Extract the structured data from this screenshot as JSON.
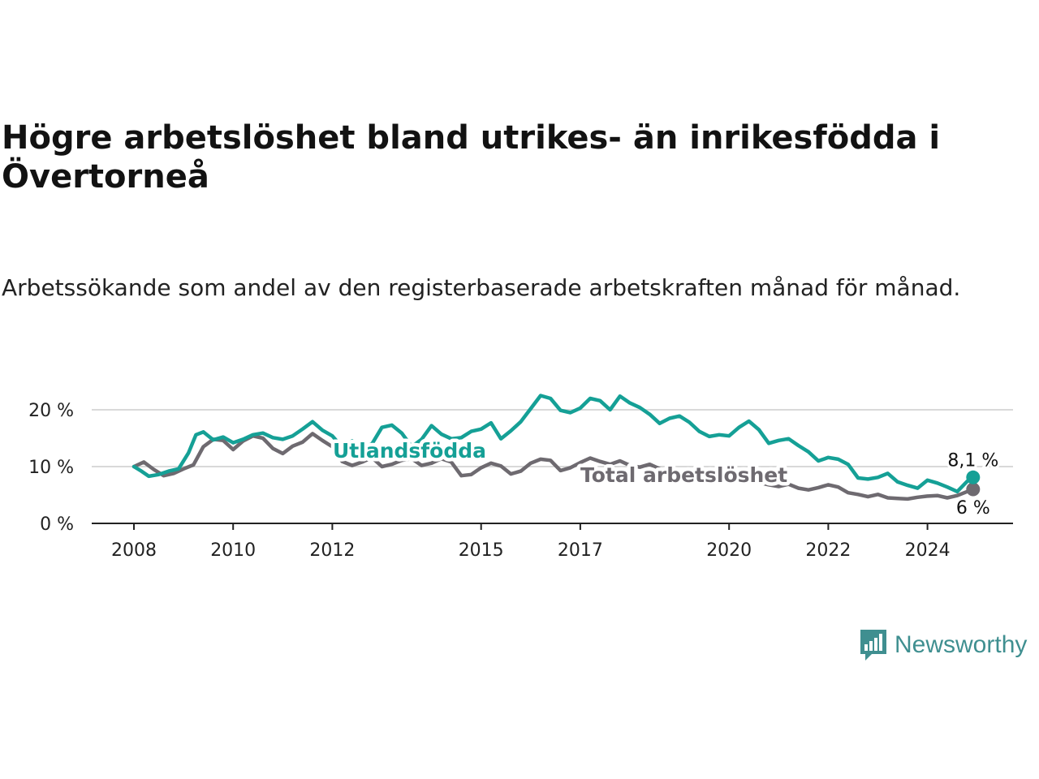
{
  "title": "Högre arbetslöshet bland utrikes- än inrikesfödda i Övertorneå",
  "subtitle": "Arbetssökande som andel av den registerbaserade arbetskraften månad för månad.",
  "brand": {
    "name": "Newsworthy",
    "color": "#3f8f90",
    "icon": "bar-chart-speech-bubble-icon"
  },
  "chart_data": {
    "type": "line",
    "x_unit": "year (decimal)",
    "xlim": [
      2008,
      2025
    ],
    "ylim": [
      0,
      22
    ],
    "yticks": [
      0,
      10,
      20
    ],
    "ytick_labels": [
      "0 %",
      "10 %",
      "20 %"
    ],
    "xticks": [
      2008,
      2010,
      2012,
      2015,
      2017,
      2020,
      2022,
      2024
    ],
    "xtick_labels": [
      "2008",
      "2010",
      "2012",
      "2015",
      "2017",
      "2020",
      "2022",
      "2024"
    ],
    "grid": "horizontal",
    "series": [
      {
        "name": "Total arbetslöshet",
        "color": "#6e6a70",
        "end_label": "6 %",
        "points": [
          [
            2008.0,
            10.0
          ],
          [
            2008.2,
            10.8
          ],
          [
            2008.4,
            9.5
          ],
          [
            2008.6,
            8.4
          ],
          [
            2008.8,
            8.8
          ],
          [
            2009.0,
            9.6
          ],
          [
            2009.2,
            10.3
          ],
          [
            2009.4,
            13.5
          ],
          [
            2009.6,
            14.8
          ],
          [
            2009.8,
            14.6
          ],
          [
            2010.0,
            13.0
          ],
          [
            2010.2,
            14.5
          ],
          [
            2010.4,
            15.4
          ],
          [
            2010.6,
            15.0
          ],
          [
            2010.8,
            13.2
          ],
          [
            2011.0,
            12.3
          ],
          [
            2011.2,
            13.6
          ],
          [
            2011.4,
            14.3
          ],
          [
            2011.6,
            15.8
          ],
          [
            2011.8,
            14.6
          ],
          [
            2012.0,
            13.5
          ],
          [
            2012.2,
            10.9
          ],
          [
            2012.4,
            10.2
          ],
          [
            2012.6,
            10.8
          ],
          [
            2012.8,
            11.6
          ],
          [
            2013.0,
            10.0
          ],
          [
            2013.2,
            10.4
          ],
          [
            2013.4,
            11.1
          ],
          [
            2013.6,
            11.4
          ],
          [
            2013.8,
            10.2
          ],
          [
            2014.0,
            10.6
          ],
          [
            2014.2,
            11.4
          ],
          [
            2014.4,
            10.8
          ],
          [
            2014.6,
            8.4
          ],
          [
            2014.8,
            8.6
          ],
          [
            2015.0,
            9.8
          ],
          [
            2015.2,
            10.6
          ],
          [
            2015.4,
            10.1
          ],
          [
            2015.6,
            8.7
          ],
          [
            2015.8,
            9.2
          ],
          [
            2016.0,
            10.6
          ],
          [
            2016.2,
            11.3
          ],
          [
            2016.4,
            11.1
          ],
          [
            2016.6,
            9.3
          ],
          [
            2016.8,
            9.8
          ],
          [
            2017.0,
            10.7
          ],
          [
            2017.2,
            11.5
          ],
          [
            2017.4,
            10.9
          ],
          [
            2017.6,
            10.4
          ],
          [
            2017.8,
            11.0
          ],
          [
            2018.0,
            10.2
          ],
          [
            2018.2,
            9.9
          ],
          [
            2018.4,
            10.4
          ],
          [
            2018.6,
            9.6
          ],
          [
            2018.8,
            9.2
          ],
          [
            2019.0,
            8.8
          ],
          [
            2019.2,
            8.3
          ],
          [
            2019.4,
            8.1
          ],
          [
            2019.6,
            7.8
          ],
          [
            2019.8,
            7.4
          ],
          [
            2020.0,
            7.7
          ],
          [
            2020.2,
            8.0
          ],
          [
            2020.4,
            7.7
          ],
          [
            2020.6,
            7.2
          ],
          [
            2020.8,
            6.8
          ],
          [
            2021.0,
            6.5
          ],
          [
            2021.2,
            6.9
          ],
          [
            2021.4,
            6.2
          ],
          [
            2021.6,
            5.9
          ],
          [
            2021.8,
            6.3
          ],
          [
            2022.0,
            6.8
          ],
          [
            2022.2,
            6.4
          ],
          [
            2022.4,
            5.4
          ],
          [
            2022.6,
            5.1
          ],
          [
            2022.8,
            4.7
          ],
          [
            2023.0,
            5.1
          ],
          [
            2023.2,
            4.5
          ],
          [
            2023.4,
            4.4
          ],
          [
            2023.6,
            4.3
          ],
          [
            2023.8,
            4.6
          ],
          [
            2024.0,
            4.8
          ],
          [
            2024.2,
            4.9
          ],
          [
            2024.4,
            4.5
          ],
          [
            2024.6,
            4.9
          ],
          [
            2024.8,
            5.6
          ],
          [
            2024.92,
            6.0
          ]
        ]
      },
      {
        "name": "Utlandsfödda",
        "color": "#15a096",
        "end_label": "8,1 %",
        "points": [
          [
            2008.0,
            10.0
          ],
          [
            2008.15,
            9.2
          ],
          [
            2008.3,
            8.3
          ],
          [
            2008.5,
            8.6
          ],
          [
            2008.7,
            9.2
          ],
          [
            2008.9,
            9.6
          ],
          [
            2009.1,
            12.4
          ],
          [
            2009.25,
            15.6
          ],
          [
            2009.4,
            16.1
          ],
          [
            2009.6,
            14.7
          ],
          [
            2009.8,
            15.2
          ],
          [
            2010.0,
            14.2
          ],
          [
            2010.2,
            14.8
          ],
          [
            2010.4,
            15.6
          ],
          [
            2010.6,
            15.9
          ],
          [
            2010.8,
            15.1
          ],
          [
            2011.0,
            14.8
          ],
          [
            2011.2,
            15.4
          ],
          [
            2011.4,
            16.6
          ],
          [
            2011.6,
            17.9
          ],
          [
            2011.8,
            16.4
          ],
          [
            2012.0,
            15.4
          ],
          [
            2012.2,
            13.4
          ],
          [
            2012.4,
            14.5
          ],
          [
            2012.6,
            13.2
          ],
          [
            2012.8,
            14.0
          ],
          [
            2013.0,
            16.9
          ],
          [
            2013.2,
            17.3
          ],
          [
            2013.4,
            15.9
          ],
          [
            2013.6,
            13.5
          ],
          [
            2013.8,
            14.8
          ],
          [
            2014.0,
            17.2
          ],
          [
            2014.2,
            15.7
          ],
          [
            2014.4,
            14.9
          ],
          [
            2014.6,
            15.1
          ],
          [
            2014.8,
            16.2
          ],
          [
            2015.0,
            16.6
          ],
          [
            2015.2,
            17.7
          ],
          [
            2015.4,
            14.9
          ],
          [
            2015.6,
            16.3
          ],
          [
            2015.8,
            17.9
          ],
          [
            2016.0,
            20.2
          ],
          [
            2016.2,
            22.5
          ],
          [
            2016.4,
            22.0
          ],
          [
            2016.6,
            19.9
          ],
          [
            2016.8,
            19.5
          ],
          [
            2017.0,
            20.3
          ],
          [
            2017.2,
            22.0
          ],
          [
            2017.4,
            21.6
          ],
          [
            2017.6,
            20.0
          ],
          [
            2017.8,
            22.4
          ],
          [
            2018.0,
            21.2
          ],
          [
            2018.2,
            20.4
          ],
          [
            2018.4,
            19.2
          ],
          [
            2018.6,
            17.6
          ],
          [
            2018.8,
            18.5
          ],
          [
            2019.0,
            18.9
          ],
          [
            2019.2,
            17.8
          ],
          [
            2019.4,
            16.2
          ],
          [
            2019.6,
            15.3
          ],
          [
            2019.8,
            15.6
          ],
          [
            2020.0,
            15.4
          ],
          [
            2020.2,
            16.9
          ],
          [
            2020.4,
            18.0
          ],
          [
            2020.6,
            16.5
          ],
          [
            2020.8,
            14.1
          ],
          [
            2021.0,
            14.6
          ],
          [
            2021.2,
            14.9
          ],
          [
            2021.4,
            13.7
          ],
          [
            2021.6,
            12.6
          ],
          [
            2021.8,
            11.0
          ],
          [
            2022.0,
            11.6
          ],
          [
            2022.2,
            11.3
          ],
          [
            2022.4,
            10.4
          ],
          [
            2022.6,
            8.0
          ],
          [
            2022.8,
            7.8
          ],
          [
            2023.0,
            8.1
          ],
          [
            2023.2,
            8.8
          ],
          [
            2023.4,
            7.3
          ],
          [
            2023.6,
            6.7
          ],
          [
            2023.8,
            6.2
          ],
          [
            2024.0,
            7.6
          ],
          [
            2024.2,
            7.1
          ],
          [
            2024.4,
            6.4
          ],
          [
            2024.6,
            5.6
          ],
          [
            2024.8,
            7.4
          ],
          [
            2024.92,
            8.1
          ]
        ]
      }
    ]
  }
}
